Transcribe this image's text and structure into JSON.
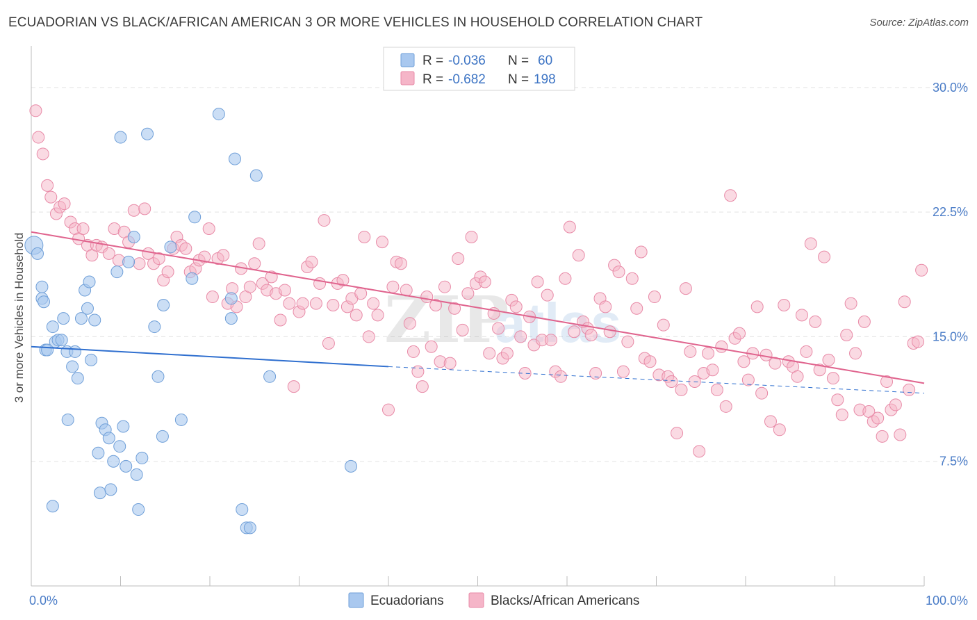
{
  "title": "ECUADORIAN VS BLACK/AFRICAN AMERICAN 3 OR MORE VEHICLES IN HOUSEHOLD CORRELATION CHART",
  "source": "Source: ZipAtlas.com",
  "watermark": {
    "part1": "ZIP",
    "part2": "atlas"
  },
  "colors": {
    "blue_fill": "#a9c8ef",
    "blue_stroke": "#6f9fd8",
    "blue_line": "#2f6fcf",
    "pink_fill": "#f5b5c8",
    "pink_stroke": "#e88aa7",
    "pink_line": "#e0648e",
    "tick_label": "#4a7cc7",
    "grid": "#e3e3e3"
  },
  "legend": {
    "r_label": "R =",
    "n_label": "N =",
    "rows": [
      {
        "series": "Ecuadorians",
        "r": "-0.036",
        "n": "60"
      },
      {
        "series": "Blacks/African Americans",
        "r": "-0.682",
        "n": "198"
      }
    ]
  },
  "chart_data": {
    "type": "scatter",
    "xlabel": "",
    "ylabel": "3 or more Vehicles in Household",
    "xlim": [
      0,
      100
    ],
    "ylim": [
      0,
      32
    ],
    "x_tick_labels": [
      "0.0%",
      "100.0%"
    ],
    "y_ticks": [
      7.5,
      15.0,
      22.5,
      30.0
    ],
    "y_tick_labels": [
      "7.5%",
      "15.0%",
      "22.5%",
      "30.0%"
    ],
    "grid": "horizontal dashed",
    "legend_position": "top-center",
    "series": [
      {
        "name": "Ecuadorians",
        "color": "#a9c8ef",
        "trend": {
          "x0": 0,
          "y0": 14.4,
          "x1": 40,
          "y1": 13.2,
          "dashed_to": 100,
          "dashed_y": 11.6
        },
        "points": [
          [
            0.3,
            20.5
          ],
          [
            0.7,
            20.0
          ],
          [
            1.2,
            17.3
          ],
          [
            1.2,
            18.0
          ],
          [
            1.4,
            17.1
          ],
          [
            1.6,
            14.2
          ],
          [
            1.8,
            14.2
          ],
          [
            2.4,
            15.6
          ],
          [
            2.7,
            14.7
          ],
          [
            3.0,
            14.8
          ],
          [
            3.4,
            14.8
          ],
          [
            3.6,
            16.1
          ],
          [
            4.0,
            14.1
          ],
          [
            4.1,
            10.0
          ],
          [
            4.6,
            13.2
          ],
          [
            4.9,
            14.1
          ],
          [
            5.2,
            12.5
          ],
          [
            5.6,
            16.1
          ],
          [
            6.0,
            17.8
          ],
          [
            6.3,
            16.7
          ],
          [
            6.5,
            18.3
          ],
          [
            6.7,
            13.6
          ],
          [
            7.1,
            16.0
          ],
          [
            7.5,
            8.0
          ],
          [
            7.7,
            5.6
          ],
          [
            7.9,
            9.8
          ],
          [
            8.3,
            9.4
          ],
          [
            8.7,
            8.9
          ],
          [
            8.9,
            5.8
          ],
          [
            9.2,
            7.5
          ],
          [
            9.6,
            18.9
          ],
          [
            9.9,
            8.4
          ],
          [
            10.0,
            27.0
          ],
          [
            10.3,
            9.6
          ],
          [
            10.6,
            7.2
          ],
          [
            10.9,
            19.5
          ],
          [
            11.5,
            21.0
          ],
          [
            11.8,
            6.7
          ],
          [
            12.0,
            4.6
          ],
          [
            12.4,
            7.7
          ],
          [
            13.0,
            27.2
          ],
          [
            13.8,
            15.6
          ],
          [
            14.2,
            12.6
          ],
          [
            14.8,
            16.9
          ],
          [
            14.7,
            9.0
          ],
          [
            15.6,
            20.4
          ],
          [
            16.8,
            10.0
          ],
          [
            18.0,
            18.5
          ],
          [
            18.3,
            22.2
          ],
          [
            21.0,
            28.4
          ],
          [
            22.4,
            17.3
          ],
          [
            22.4,
            16.1
          ],
          [
            22.8,
            25.7
          ],
          [
            23.6,
            4.6
          ],
          [
            24.1,
            3.5
          ],
          [
            24.5,
            3.5
          ],
          [
            25.2,
            24.7
          ],
          [
            26.7,
            12.6
          ],
          [
            35.8,
            7.2
          ],
          [
            2.4,
            4.8
          ]
        ]
      },
      {
        "name": "Blacks/African Americans",
        "color": "#f5b5c8",
        "trend": {
          "x0": 0,
          "y0": 21.3,
          "x1": 100,
          "y1": 12.2
        },
        "points": [
          [
            0.5,
            28.6
          ],
          [
            0.8,
            27.0
          ],
          [
            1.3,
            26.0
          ],
          [
            1.8,
            24.1
          ],
          [
            2.2,
            23.4
          ],
          [
            2.8,
            22.4
          ],
          [
            3.2,
            22.8
          ],
          [
            3.7,
            23.0
          ],
          [
            4.4,
            21.9
          ],
          [
            4.9,
            21.5
          ],
          [
            5.3,
            20.9
          ],
          [
            5.8,
            21.5
          ],
          [
            6.3,
            20.5
          ],
          [
            6.8,
            19.9
          ],
          [
            7.3,
            20.5
          ],
          [
            7.9,
            20.4
          ],
          [
            8.7,
            20.0
          ],
          [
            9.3,
            21.5
          ],
          [
            9.8,
            19.6
          ],
          [
            10.4,
            21.3
          ],
          [
            10.9,
            20.7
          ],
          [
            11.5,
            22.6
          ],
          [
            12.1,
            19.4
          ],
          [
            12.7,
            22.7
          ],
          [
            13.1,
            20.0
          ],
          [
            13.7,
            19.4
          ],
          [
            14.3,
            19.7
          ],
          [
            14.8,
            18.4
          ],
          [
            15.3,
            18.9
          ],
          [
            15.9,
            20.3
          ],
          [
            16.3,
            21.0
          ],
          [
            16.8,
            20.5
          ],
          [
            17.3,
            20.3
          ],
          [
            17.8,
            18.9
          ],
          [
            18.4,
            19.1
          ],
          [
            18.8,
            19.6
          ],
          [
            19.4,
            19.8
          ],
          [
            19.9,
            21.5
          ],
          [
            20.3,
            17.4
          ],
          [
            20.9,
            19.7
          ],
          [
            21.5,
            19.9
          ],
          [
            22.0,
            17.0
          ],
          [
            22.5,
            17.9
          ],
          [
            23.0,
            16.8
          ],
          [
            23.5,
            19.1
          ],
          [
            24.0,
            17.4
          ],
          [
            24.5,
            18.0
          ],
          [
            25.0,
            19.4
          ],
          [
            25.5,
            20.6
          ],
          [
            25.9,
            18.2
          ],
          [
            26.4,
            17.8
          ],
          [
            26.9,
            18.6
          ],
          [
            27.4,
            17.6
          ],
          [
            27.9,
            16.0
          ],
          [
            28.4,
            17.8
          ],
          [
            28.9,
            17.0
          ],
          [
            29.4,
            12.0
          ],
          [
            30.0,
            16.5
          ],
          [
            30.4,
            17.0
          ],
          [
            30.9,
            19.2
          ],
          [
            31.4,
            19.5
          ],
          [
            31.9,
            17.0
          ],
          [
            32.3,
            18.2
          ],
          [
            32.8,
            22.0
          ],
          [
            33.3,
            14.6
          ],
          [
            33.8,
            16.9
          ],
          [
            34.3,
            18.2
          ],
          [
            34.9,
            18.4
          ],
          [
            35.4,
            16.8
          ],
          [
            35.9,
            17.3
          ],
          [
            36.4,
            16.3
          ],
          [
            36.9,
            17.6
          ],
          [
            37.3,
            21.0
          ],
          [
            37.8,
            15.0
          ],
          [
            38.3,
            17.0
          ],
          [
            38.8,
            16.3
          ],
          [
            39.3,
            20.7
          ],
          [
            40.0,
            10.6
          ],
          [
            40.5,
            18.0
          ],
          [
            40.9,
            19.5
          ],
          [
            41.4,
            19.4
          ],
          [
            42.0,
            17.8
          ],
          [
            42.4,
            15.8
          ],
          [
            42.8,
            14.1
          ],
          [
            43.3,
            12.9
          ],
          [
            43.8,
            12.0
          ],
          [
            44.3,
            17.4
          ],
          [
            44.8,
            14.4
          ],
          [
            45.3,
            16.9
          ],
          [
            45.8,
            13.5
          ],
          [
            46.3,
            18.0
          ],
          [
            46.9,
            13.4
          ],
          [
            47.4,
            16.7
          ],
          [
            47.8,
            19.7
          ],
          [
            48.3,
            15.4
          ],
          [
            48.9,
            17.6
          ],
          [
            49.3,
            21.0
          ],
          [
            49.8,
            18.2
          ],
          [
            50.3,
            18.6
          ],
          [
            50.8,
            18.3
          ],
          [
            51.3,
            14.0
          ],
          [
            51.8,
            16.4
          ],
          [
            52.3,
            15.5
          ],
          [
            52.8,
            13.7
          ],
          [
            53.3,
            14.0
          ],
          [
            53.8,
            17.2
          ],
          [
            54.3,
            16.8
          ],
          [
            54.8,
            15.0
          ],
          [
            55.3,
            12.8
          ],
          [
            55.8,
            16.2
          ],
          [
            56.3,
            14.5
          ],
          [
            56.7,
            18.3
          ],
          [
            57.2,
            14.8
          ],
          [
            57.8,
            17.5
          ],
          [
            58.2,
            14.8
          ],
          [
            58.7,
            12.9
          ],
          [
            59.3,
            12.6
          ],
          [
            59.8,
            18.5
          ],
          [
            60.3,
            21.6
          ],
          [
            60.8,
            15.3
          ],
          [
            61.3,
            19.9
          ],
          [
            61.8,
            15.9
          ],
          [
            62.3,
            15.5
          ],
          [
            62.7,
            15.1
          ],
          [
            63.2,
            12.8
          ],
          [
            63.7,
            17.3
          ],
          [
            64.3,
            16.8
          ],
          [
            64.8,
            15.3
          ],
          [
            65.3,
            19.3
          ],
          [
            65.8,
            18.9
          ],
          [
            66.3,
            12.9
          ],
          [
            66.8,
            14.7
          ],
          [
            67.3,
            18.5
          ],
          [
            67.8,
            16.7
          ],
          [
            68.3,
            20.1
          ],
          [
            68.7,
            13.7
          ],
          [
            69.3,
            13.5
          ],
          [
            69.8,
            17.4
          ],
          [
            70.3,
            12.7
          ],
          [
            70.8,
            15.7
          ],
          [
            71.3,
            12.6
          ],
          [
            71.7,
            12.3
          ],
          [
            72.3,
            9.2
          ],
          [
            72.8,
            11.8
          ],
          [
            73.3,
            17.9
          ],
          [
            73.8,
            14.1
          ],
          [
            74.3,
            12.3
          ],
          [
            74.8,
            8.1
          ],
          [
            75.3,
            12.8
          ],
          [
            75.8,
            14.0
          ],
          [
            76.3,
            13.0
          ],
          [
            76.8,
            11.8
          ],
          [
            77.3,
            14.4
          ],
          [
            77.8,
            10.8
          ],
          [
            78.3,
            23.5
          ],
          [
            78.8,
            14.9
          ],
          [
            79.3,
            15.2
          ],
          [
            79.8,
            13.5
          ],
          [
            80.3,
            12.4
          ],
          [
            80.8,
            14.0
          ],
          [
            81.3,
            16.8
          ],
          [
            81.8,
            11.6
          ],
          [
            82.3,
            13.9
          ],
          [
            82.8,
            9.9
          ],
          [
            83.3,
            13.4
          ],
          [
            83.8,
            9.4
          ],
          [
            84.3,
            16.9
          ],
          [
            84.8,
            13.5
          ],
          [
            85.3,
            13.2
          ],
          [
            85.8,
            12.6
          ],
          [
            86.3,
            16.3
          ],
          [
            86.8,
            14.1
          ],
          [
            87.3,
            20.6
          ],
          [
            87.8,
            15.9
          ],
          [
            88.3,
            13.0
          ],
          [
            88.8,
            19.8
          ],
          [
            89.3,
            13.6
          ],
          [
            89.8,
            12.5
          ],
          [
            90.3,
            11.2
          ],
          [
            90.8,
            10.3
          ],
          [
            91.3,
            15.1
          ],
          [
            91.8,
            17.0
          ],
          [
            92.3,
            14.0
          ],
          [
            92.8,
            10.6
          ],
          [
            93.3,
            15.9
          ],
          [
            93.8,
            10.5
          ],
          [
            94.3,
            9.9
          ],
          [
            94.8,
            10.1
          ],
          [
            95.3,
            9.0
          ],
          [
            95.8,
            12.3
          ],
          [
            96.3,
            10.6
          ],
          [
            96.8,
            10.9
          ],
          [
            97.3,
            9.1
          ],
          [
            97.8,
            17.1
          ],
          [
            98.3,
            11.8
          ],
          [
            98.8,
            14.6
          ],
          [
            99.3,
            14.7
          ],
          [
            99.7,
            19.0
          ]
        ]
      }
    ]
  },
  "bottom_legend": [
    {
      "label": "Ecuadorians"
    },
    {
      "label": "Blacks/African Americans"
    }
  ]
}
